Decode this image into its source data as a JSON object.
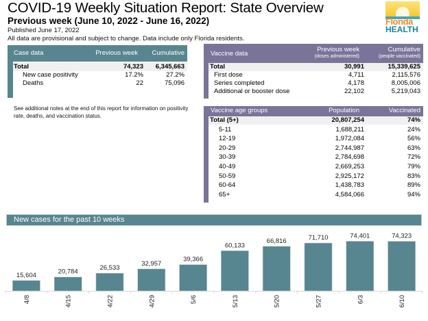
{
  "header": {
    "title": "COVID-19 Weekly Situation Report: State Overview",
    "subtitle": "Previous week (June 10, 2022 - June 16, 2022)",
    "published": "Published June 17, 2022",
    "disclaimer": "All data are provisional and subject to change. Data include only Florida residents.",
    "logo": {
      "line1": "Florida",
      "line2": "HEALTH"
    }
  },
  "case_table": {
    "headers": [
      "Case data",
      "Previous week",
      "Cumulative"
    ],
    "rows": [
      {
        "label": "Total",
        "week": "74,323",
        "cumulative": "6,345,663"
      },
      {
        "label": "New case positivity",
        "week": "17.2%",
        "cumulative": "27.2%"
      },
      {
        "label": "Deaths",
        "week": "22",
        "cumulative": "75,096"
      }
    ]
  },
  "vaccine_table": {
    "headers": [
      "Vaccine data",
      "Previous week",
      "Cumulative"
    ],
    "subheaders": [
      "",
      "(doses administered)",
      "(people vaccinated)"
    ],
    "rows": [
      {
        "label": "Total",
        "week": "30,991",
        "cumulative": "15,339,625"
      },
      {
        "label": "First dose",
        "week": "4,711",
        "cumulative": "2,115,576"
      },
      {
        "label": "Series completed",
        "week": "4,178",
        "cumulative": "8,005,006"
      },
      {
        "label": "Additional or booster dose",
        "week": "22,102",
        "cumulative": "5,219,043"
      }
    ]
  },
  "note": "See additional notes at the end of this report for information on positivity rate, deaths, and vaccination status.",
  "age_table": {
    "headers": [
      "Vaccine age groups",
      "Population",
      "Vaccinated"
    ],
    "rows": [
      {
        "label": "Total (5+)",
        "population": "20,807,254",
        "vaccinated": "74%"
      },
      {
        "label": "5-11",
        "population": "1,688,211",
        "vaccinated": "24%"
      },
      {
        "label": "12-19",
        "population": "1,972,084",
        "vaccinated": "56%"
      },
      {
        "label": "20-29",
        "population": "2,744,987",
        "vaccinated": "63%"
      },
      {
        "label": "30-39",
        "population": "2,784,698",
        "vaccinated": "72%"
      },
      {
        "label": "40-49",
        "population": "2,669,253",
        "vaccinated": "79%"
      },
      {
        "label": "50-59",
        "population": "2,925,172",
        "vaccinated": "83%"
      },
      {
        "label": "60-64",
        "population": "1,438,783",
        "vaccinated": "89%"
      },
      {
        "label": "65+",
        "population": "4,584,066",
        "vaccinated": "94%"
      }
    ]
  },
  "colors": {
    "case_teal": "#578590",
    "vaccine_purple": "#7a7499",
    "bar": "#578590"
  },
  "chart_data": {
    "type": "bar",
    "title": "New cases for the past 10 weeks",
    "categories": [
      "4/8",
      "4/15",
      "4/22",
      "4/29",
      "5/6",
      "5/13",
      "5/20",
      "5/27",
      "6/3",
      "6/10"
    ],
    "values": [
      15604,
      20784,
      26533,
      32957,
      39366,
      60133,
      66816,
      71710,
      74401,
      74323
    ],
    "labels": [
      "15,604",
      "20,784",
      "26,533",
      "32,957",
      "39,366",
      "60,133",
      "66,816",
      "71,710",
      "74,401",
      "74,323"
    ],
    "xlabel": "",
    "ylabel": "",
    "ylim": [
      0,
      80000
    ],
    "grid": false,
    "legend": "none"
  }
}
